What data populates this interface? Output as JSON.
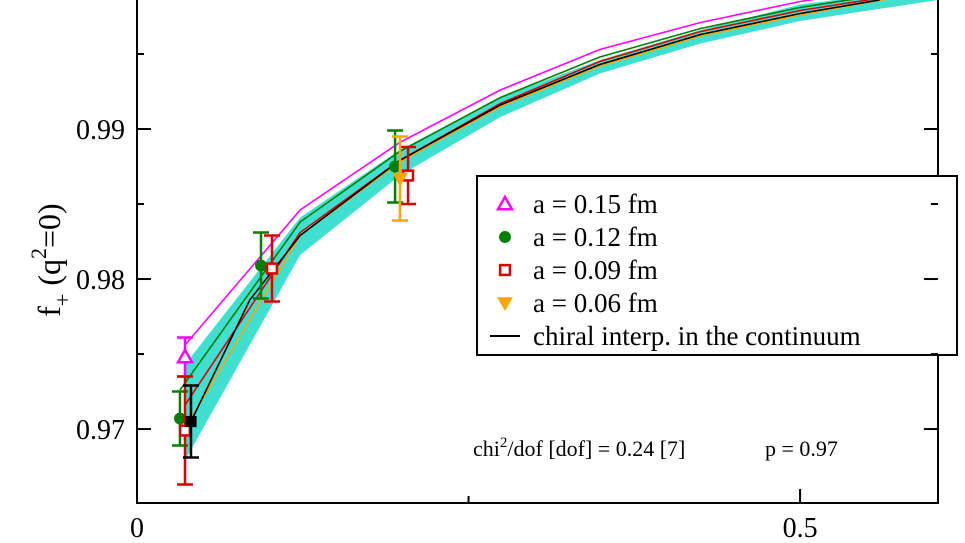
{
  "chart_data": {
    "type": "scatter",
    "ylabel": {
      "base": "f",
      "sub": "+",
      "mid": " (q",
      "sup": "2",
      "end": "=0)"
    },
    "annotation": {
      "a": "chi",
      "sup": "2",
      "b": "/dof [dof] = 0.24 [7]",
      "c": "p = 0.97"
    },
    "xlim": [
      0,
      0.604
    ],
    "ylim": [
      0.96507,
      0.9986
    ],
    "xticks": [
      0,
      0.5
    ],
    "xminor": [
      0.25
    ],
    "yticks": [
      0.97,
      0.98,
      0.99
    ],
    "yminor": [
      0.975,
      0.985,
      0.995
    ],
    "band": {
      "color": "#40e0d0",
      "x": [
        0.0362,
        0.123,
        0.198,
        0.274,
        0.349,
        0.425,
        0.5,
        0.604
      ],
      "lower": [
        0.9679,
        0.9816,
        0.9869,
        0.9908,
        0.9937,
        0.9957,
        0.9972,
        0.9986
      ],
      "upper": [
        0.9743,
        0.9841,
        0.9886,
        0.9921,
        0.9946,
        0.9966,
        0.9983,
        0.9995
      ]
    },
    "curves": [
      {
        "color": "#ff00ff",
        "x": [
          0.0362,
          0.123,
          0.198,
          0.274,
          0.349,
          0.425,
          0.5,
          0.56
        ],
        "y": [
          0.9756,
          0.9846,
          0.9891,
          0.9926,
          0.9953,
          0.9971,
          0.9985,
          0.9993
        ]
      },
      {
        "color": "#008000",
        "x": [
          0.0324,
          0.123,
          0.198,
          0.274,
          0.349,
          0.425,
          0.5,
          0.58
        ],
        "y": [
          0.9726,
          0.9838,
          0.9885,
          0.9921,
          0.9948,
          0.9967,
          0.9981,
          0.9992
        ]
      },
      {
        "color": "#dd0000",
        "x": [
          0.0362,
          0.123,
          0.198,
          0.274,
          0.349,
          0.425,
          0.5,
          0.58
        ],
        "y": [
          0.9716,
          0.9831,
          0.9879,
          0.9917,
          0.9945,
          0.9965,
          0.9979,
          0.999
        ]
      },
      {
        "color": "#ffa500",
        "x": [
          0.0407,
          0.123,
          0.198,
          0.274,
          0.349,
          0.425,
          0.5,
          0.58
        ],
        "y": [
          0.9707,
          0.9829,
          0.9878,
          0.9915,
          0.9942,
          0.9962,
          0.9976,
          0.9989
        ]
      },
      {
        "name": "chiral interp. in the continuum",
        "color": "#000000",
        "x": [
          0.0407,
          0.085,
          0.123,
          0.198,
          0.274,
          0.349,
          0.425,
          0.5,
          0.56
        ],
        "y": [
          0.9705,
          0.9786,
          0.9829,
          0.9879,
          0.9916,
          0.9943,
          0.9963,
          0.9977,
          0.9986
        ]
      }
    ],
    "series": [
      {
        "name": "a = 0.15 fm",
        "color": "#ff00ff",
        "marker": "triangle-up",
        "x": [
          0.0362
        ],
        "values": [
          0.9748
        ],
        "errors": [
          0.0013
        ]
      },
      {
        "name": "a = 0.12 fm",
        "color": "#008000",
        "marker": "circle",
        "x": [
          0.0324,
          0.0935,
          0.1946
        ],
        "values": [
          0.9707,
          0.9809,
          0.9875
        ],
        "errors": [
          0.0018,
          0.0022,
          0.0024
        ]
      },
      {
        "name": "a = 0.09 fm",
        "color": "#dd0000",
        "marker": "square",
        "x": [
          0.0362,
          0.1018,
          0.2044
        ],
        "values": [
          0.9699,
          0.9807,
          0.9869
        ],
        "errors": [
          0.0036,
          0.0022,
          0.0019
        ]
      },
      {
        "name": "a = 0.06 fm",
        "color": "#ffa500",
        "marker": "triangle-down",
        "x": [
          0.1983
        ],
        "values": [
          0.9867
        ],
        "errors": [
          0.0028
        ]
      },
      {
        "color": "#000000",
        "marker": "filled-square",
        "x": [
          0.0407
        ],
        "values": [
          0.9705
        ],
        "errors": [
          0.0024
        ]
      }
    ]
  }
}
